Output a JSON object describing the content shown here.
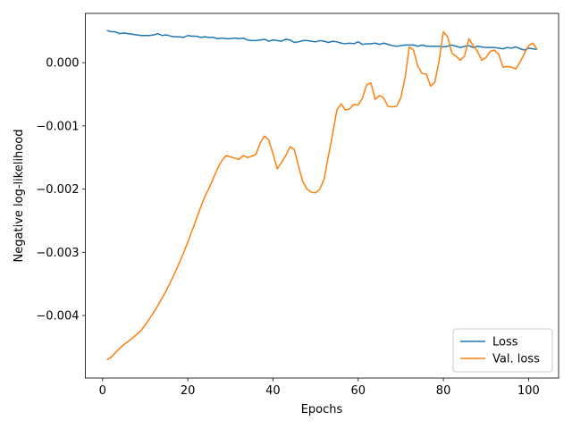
{
  "chart_data": {
    "type": "line",
    "x_label": "Epochs",
    "y_label": "Negative log-likelihood",
    "x": [
      1,
      2,
      3,
      4,
      5,
      6,
      7,
      8,
      9,
      10,
      11,
      12,
      13,
      14,
      15,
      16,
      17,
      18,
      19,
      20,
      21,
      22,
      23,
      24,
      25,
      26,
      27,
      28,
      29,
      30,
      31,
      32,
      33,
      34,
      35,
      36,
      37,
      38,
      39,
      40,
      41,
      42,
      43,
      44,
      45,
      46,
      47,
      48,
      49,
      50,
      51,
      52,
      53,
      54,
      55,
      56,
      57,
      58,
      59,
      60,
      61,
      62,
      63,
      64,
      65,
      66,
      67,
      68,
      69,
      70,
      71,
      72,
      73,
      74,
      75,
      76,
      77,
      78,
      79,
      80,
      81,
      82,
      83,
      84,
      85,
      86,
      87,
      88,
      89,
      90,
      91,
      92,
      93,
      94,
      95,
      96,
      97,
      98,
      99,
      100,
      101,
      102
    ],
    "series": [
      {
        "name": "Loss",
        "color": "#1f77b4",
        "values": [
          0.00051,
          0.00049,
          0.00049,
          0.00046,
          0.00047,
          0.00046,
          0.00045,
          0.00044,
          0.00043,
          0.00043,
          0.00043,
          0.00044,
          0.00046,
          0.00043,
          0.00044,
          0.00042,
          0.00041,
          0.00041,
          0.0004,
          0.00043,
          0.00042,
          0.00042,
          0.0004,
          0.00041,
          0.0004,
          0.0004,
          0.00038,
          0.00039,
          0.00038,
          0.00038,
          0.00039,
          0.00038,
          0.00039,
          0.00036,
          0.00035,
          0.00035,
          0.00036,
          0.00037,
          0.00034,
          0.00036,
          0.00035,
          0.00034,
          0.00037,
          0.00036,
          0.00032,
          0.00033,
          0.00035,
          0.00035,
          0.00034,
          0.00033,
          0.00035,
          0.00034,
          0.00032,
          0.00034,
          0.00033,
          0.00031,
          0.0003,
          0.00031,
          0.0003,
          0.00033,
          0.00029,
          0.0003,
          0.0003,
          0.00031,
          0.00029,
          0.00031,
          0.00029,
          0.00027,
          0.00026,
          0.00027,
          0.00028,
          0.00028,
          0.00028,
          0.00026,
          0.00028,
          0.00026,
          0.00026,
          0.00026,
          0.00026,
          0.00025,
          0.00026,
          0.00028,
          0.00026,
          0.00024,
          0.00026,
          0.00027,
          0.00024,
          0.00026,
          0.00025,
          0.00024,
          0.00024,
          0.00024,
          0.00023,
          0.00022,
          0.00024,
          0.00023,
          0.00025,
          0.00022,
          0.0002,
          0.00023,
          0.00022,
          0.00021
        ]
      },
      {
        "name": "Val. loss",
        "color": "#ff7f0e",
        "values": [
          -0.0047,
          -0.00466,
          -0.00459,
          -0.00452,
          -0.00446,
          -0.00441,
          -0.00436,
          -0.0043,
          -0.00424,
          -0.00415,
          -0.00405,
          -0.00395,
          -0.00384,
          -0.00372,
          -0.0036,
          -0.00346,
          -0.00332,
          -0.00317,
          -0.00301,
          -0.00284,
          -0.00266,
          -0.00248,
          -0.00229,
          -0.00212,
          -0.00198,
          -0.00183,
          -0.00167,
          -0.00155,
          -0.00147,
          -0.00149,
          -0.00151,
          -0.00153,
          -0.00147,
          -0.0015,
          -0.00148,
          -0.00145,
          -0.00127,
          -0.00116,
          -0.00122,
          -0.00144,
          -0.00168,
          -0.00158,
          -0.00147,
          -0.00133,
          -0.00137,
          -0.00164,
          -0.00188,
          -0.002,
          -0.00205,
          -0.00206,
          -0.002,
          -0.00184,
          -0.00148,
          -0.00113,
          -0.00075,
          -0.00065,
          -0.00075,
          -0.00073,
          -0.00066,
          -0.00067,
          -0.00056,
          -0.00035,
          -0.00032,
          -0.00058,
          -0.00052,
          -0.00056,
          -0.00069,
          -0.0007,
          -0.00069,
          -0.00056,
          -0.00024,
          0.00025,
          0.0002,
          -6e-05,
          -0.00017,
          -0.00018,
          -0.00037,
          -0.00031,
          3e-05,
          0.00049,
          0.00041,
          0.00015,
          0.0001,
          4e-05,
          0.00011,
          0.00038,
          0.00027,
          0.00018,
          4e-05,
          8e-05,
          0.00018,
          0.0002,
          0.00013,
          -7e-05,
          -6e-05,
          -7e-05,
          -0.0001,
          1e-05,
          0.00014,
          0.00027,
          0.00031,
          0.00021
        ]
      }
    ],
    "xlim": [
      -4.05,
      107.05
    ],
    "xticks": [
      0,
      20,
      40,
      60,
      80,
      100
    ],
    "ylim": [
      -0.00499,
      0.00078
    ],
    "yticks": [
      {
        "value": -0.004,
        "label": "−0.004"
      },
      {
        "value": -0.003,
        "label": "−0.003"
      },
      {
        "value": -0.002,
        "label": "−0.002"
      },
      {
        "value": -0.001,
        "label": "−0.001"
      },
      {
        "value": 0,
        "label": "0.000"
      }
    ],
    "legend": "lower right"
  }
}
